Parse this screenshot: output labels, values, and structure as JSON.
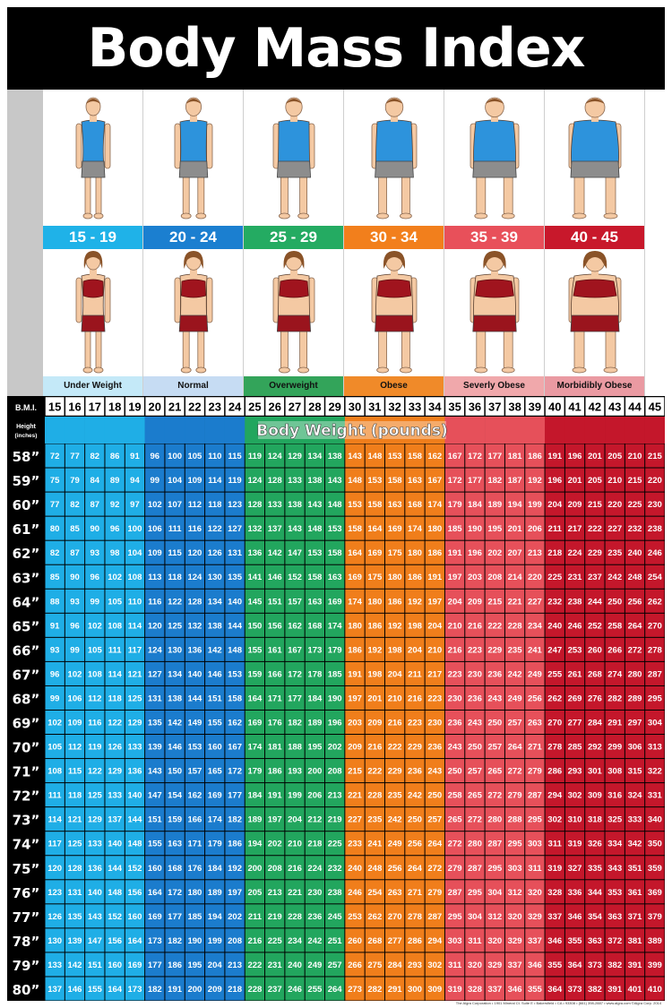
{
  "title": "Body Mass Index (BMI)",
  "groups": [
    {
      "range": "15 - 19",
      "category": "Under Weight",
      "color": "#1fb2e8",
      "band_color": "#c4e9f8",
      "size": 0.0
    },
    {
      "range": "20 - 24",
      "category": "Normal",
      "color": "#1b7fd0",
      "band_color": "#c6dcf3",
      "size": 0.2
    },
    {
      "range": "25 - 29",
      "category": "Overweight",
      "color": "#24ab62",
      "band_color": "#33a45a",
      "size": 0.4
    },
    {
      "range": "30 - 34",
      "category": "Obese",
      "color": "#f27f1c",
      "band_color": "#f08a29",
      "size": 0.6
    },
    {
      "range": "35 - 39",
      "category": "Severly Obese",
      "color": "#e8505a",
      "band_color": "#f0a8ab",
      "size": 0.8
    },
    {
      "range": "40 - 45",
      "category": "Morbidibly Obese",
      "color": "#c8182b",
      "band_color": "#ea9aa2",
      "size": 1.0
    }
  ],
  "chart_data": {
    "type": "table",
    "row_header_label": "B.M.I.",
    "height_label": "Height",
    "height_unit_label": "(inches)",
    "subtitle": "Body Weight (pounds)",
    "bmi": [
      15,
      16,
      17,
      18,
      19,
      20,
      21,
      22,
      23,
      24,
      25,
      26,
      27,
      28,
      29,
      30,
      31,
      32,
      33,
      34,
      35,
      36,
      37,
      38,
      39,
      40,
      41,
      42,
      43,
      44,
      45
    ],
    "heights": [
      "58”",
      "59”",
      "60”",
      "61”",
      "62”",
      "63”",
      "64”",
      "65”",
      "66”",
      "67”",
      "68”",
      "69”",
      "70”",
      "71”",
      "72”",
      "73”",
      "74”",
      "75”",
      "76”",
      "77”",
      "78”",
      "79”",
      "80”"
    ],
    "weights": [
      [
        72,
        77,
        82,
        86,
        91,
        96,
        100,
        105,
        110,
        115,
        119,
        124,
        129,
        134,
        138,
        143,
        148,
        153,
        158,
        162,
        167,
        172,
        177,
        181,
        186,
        191,
        196,
        201,
        205,
        210,
        215
      ],
      [
        75,
        79,
        84,
        89,
        94,
        99,
        104,
        109,
        114,
        119,
        124,
        128,
        133,
        138,
        143,
        148,
        153,
        158,
        163,
        167,
        172,
        177,
        182,
        187,
        192,
        196,
        201,
        205,
        210,
        215,
        220
      ],
      [
        77,
        82,
        87,
        92,
        97,
        102,
        107,
        112,
        118,
        123,
        128,
        133,
        138,
        143,
        148,
        153,
        158,
        163,
        168,
        174,
        179,
        184,
        189,
        194,
        199,
        204,
        209,
        215,
        220,
        225,
        230
      ],
      [
        80,
        85,
        90,
        96,
        100,
        106,
        111,
        116,
        122,
        127,
        132,
        137,
        143,
        148,
        153,
        158,
        164,
        169,
        174,
        180,
        185,
        190,
        195,
        201,
        206,
        211,
        217,
        222,
        227,
        232,
        238
      ],
      [
        82,
        87,
        93,
        98,
        104,
        109,
        115,
        120,
        126,
        131,
        136,
        142,
        147,
        153,
        158,
        164,
        169,
        175,
        180,
        186,
        191,
        196,
        202,
        207,
        213,
        218,
        224,
        229,
        235,
        240,
        246
      ],
      [
        85,
        90,
        96,
        102,
        108,
        113,
        118,
        124,
        130,
        135,
        141,
        146,
        152,
        158,
        163,
        169,
        175,
        180,
        186,
        191,
        197,
        203,
        208,
        214,
        220,
        225,
        231,
        237,
        242,
        248,
        254
      ],
      [
        88,
        93,
        99,
        105,
        110,
        116,
        122,
        128,
        134,
        140,
        145,
        151,
        157,
        163,
        169,
        174,
        180,
        186,
        192,
        197,
        204,
        209,
        215,
        221,
        227,
        232,
        238,
        244,
        250,
        256,
        262
      ],
      [
        91,
        96,
        102,
        108,
        114,
        120,
        125,
        132,
        138,
        144,
        150,
        156,
        162,
        168,
        174,
        180,
        186,
        192,
        198,
        204,
        210,
        216,
        222,
        228,
        234,
        240,
        246,
        252,
        258,
        264,
        270
      ],
      [
        93,
        99,
        105,
        111,
        117,
        124,
        130,
        136,
        142,
        148,
        155,
        161,
        167,
        173,
        179,
        186,
        192,
        198,
        204,
        210,
        216,
        223,
        229,
        235,
        241,
        247,
        253,
        260,
        266,
        272,
        278
      ],
      [
        96,
        102,
        108,
        114,
        121,
        127,
        134,
        140,
        146,
        153,
        159,
        166,
        172,
        178,
        185,
        191,
        198,
        204,
        211,
        217,
        223,
        230,
        236,
        242,
        249,
        255,
        261,
        268,
        274,
        280,
        287
      ],
      [
        99,
        106,
        112,
        118,
        125,
        131,
        138,
        144,
        151,
        158,
        164,
        171,
        177,
        184,
        190,
        197,
        201,
        210,
        216,
        223,
        230,
        236,
        243,
        249,
        256,
        262,
        269,
        276,
        282,
        289,
        295
      ],
      [
        102,
        109,
        116,
        122,
        129,
        135,
        142,
        149,
        155,
        162,
        169,
        176,
        182,
        189,
        196,
        203,
        209,
        216,
        223,
        230,
        236,
        243,
        250,
        257,
        263,
        270,
        277,
        284,
        291,
        297,
        304
      ],
      [
        105,
        112,
        119,
        126,
        133,
        139,
        146,
        153,
        160,
        167,
        174,
        181,
        188,
        195,
        202,
        209,
        216,
        222,
        229,
        236,
        243,
        250,
        257,
        264,
        271,
        278,
        285,
        292,
        299,
        306,
        313
      ],
      [
        108,
        115,
        122,
        129,
        136,
        143,
        150,
        157,
        165,
        172,
        179,
        186,
        193,
        200,
        208,
        215,
        222,
        229,
        236,
        243,
        250,
        257,
        265,
        272,
        279,
        286,
        293,
        301,
        308,
        315,
        322
      ],
      [
        111,
        118,
        125,
        133,
        140,
        147,
        154,
        162,
        169,
        177,
        184,
        191,
        199,
        206,
        213,
        221,
        228,
        235,
        242,
        250,
        258,
        265,
        272,
        279,
        287,
        294,
        302,
        309,
        316,
        324,
        331
      ],
      [
        114,
        121,
        129,
        137,
        144,
        151,
        159,
        166,
        174,
        182,
        189,
        197,
        204,
        212,
        219,
        227,
        235,
        242,
        250,
        257,
        265,
        272,
        280,
        288,
        295,
        302,
        310,
        318,
        325,
        333,
        340
      ],
      [
        117,
        125,
        133,
        140,
        148,
        155,
        163,
        171,
        179,
        186,
        194,
        202,
        210,
        218,
        225,
        233,
        241,
        249,
        256,
        264,
        272,
        280,
        287,
        295,
        303,
        311,
        319,
        326,
        334,
        342,
        350
      ],
      [
        120,
        128,
        136,
        144,
        152,
        160,
        168,
        176,
        184,
        192,
        200,
        208,
        216,
        224,
        232,
        240,
        248,
        256,
        264,
        272,
        279,
        287,
        295,
        303,
        311,
        319,
        327,
        335,
        343,
        351,
        359
      ],
      [
        123,
        131,
        140,
        148,
        156,
        164,
        172,
        180,
        189,
        197,
        205,
        213,
        221,
        230,
        238,
        246,
        254,
        263,
        271,
        279,
        287,
        295,
        304,
        312,
        320,
        328,
        336,
        344,
        353,
        361,
        369
      ],
      [
        126,
        135,
        143,
        152,
        160,
        169,
        177,
        185,
        194,
        202,
        211,
        219,
        228,
        236,
        245,
        253,
        262,
        270,
        278,
        287,
        295,
        304,
        312,
        320,
        329,
        337,
        346,
        354,
        363,
        371,
        379
      ],
      [
        130,
        139,
        147,
        156,
        164,
        173,
        182,
        190,
        199,
        208,
        216,
        225,
        234,
        242,
        251,
        260,
        268,
        277,
        286,
        294,
        303,
        311,
        320,
        329,
        337,
        346,
        355,
        363,
        372,
        381,
        389
      ],
      [
        133,
        142,
        151,
        160,
        169,
        177,
        186,
        195,
        204,
        213,
        222,
        231,
        240,
        249,
        257,
        266,
        275,
        284,
        293,
        302,
        311,
        320,
        329,
        337,
        346,
        355,
        364,
        373,
        382,
        391,
        399
      ],
      [
        137,
        146,
        155,
        164,
        173,
        182,
        191,
        200,
        209,
        218,
        228,
        237,
        246,
        255,
        264,
        273,
        282,
        291,
        300,
        309,
        319,
        328,
        337,
        346,
        355,
        364,
        373,
        382,
        391,
        401,
        410
      ]
    ]
  },
  "footnote": "The Algra Corporation • 1901 Mineral Ct. Suite E • Bakersfield • CA • 93308 • (661) 398-2887 • www.algra.com ©Algra Corp. 2014"
}
